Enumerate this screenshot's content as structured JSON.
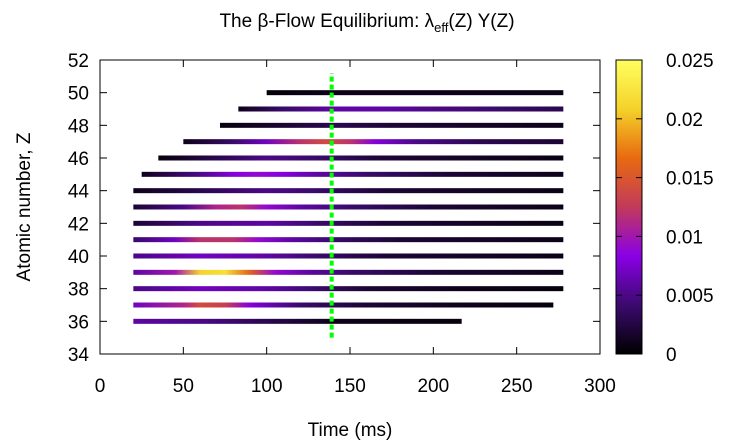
{
  "chart_data": {
    "type": "heatmap",
    "title": "The β-Flow Equilibrium: λ",
    "title_sub": "eff",
    "title_rest": "(Z) Y(Z)",
    "xlabel": "Time (ms)",
    "ylabel": "Atomic number, Z",
    "xlim": [
      0,
      300
    ],
    "ylim": [
      34,
      52
    ],
    "xticks": [
      "0",
      "50",
      "100",
      "150",
      "200",
      "250",
      "300"
    ],
    "yticks": [
      "34",
      "36",
      "38",
      "40",
      "42",
      "44",
      "46",
      "48",
      "50",
      "52"
    ],
    "colorbar": {
      "min": 0,
      "max": 0.025,
      "ticks": [
        "0",
        "0.005",
        "0.01",
        "0.015",
        "0.02",
        "0.025"
      ],
      "colors": [
        "#000000",
        "#3b0a6e",
        "#8a00e6",
        "#c23a5a",
        "#e86a10",
        "#f4d22a",
        "#ffff60"
      ]
    },
    "reference_line": {
      "x": 139,
      "color": "#00ff00",
      "style": "dashed"
    },
    "rows": [
      {
        "z": 36,
        "x_start": 20,
        "x_end": 217,
        "profile": [
          [
            20,
            0.006
          ],
          [
            60,
            0.005
          ],
          [
            100,
            0.003
          ],
          [
            140,
            0.001
          ],
          [
            217,
            0.0005
          ]
        ]
      },
      {
        "z": 37,
        "x_start": 20,
        "x_end": 272,
        "profile": [
          [
            20,
            0.007
          ],
          [
            50,
            0.011
          ],
          [
            60,
            0.014
          ],
          [
            75,
            0.013
          ],
          [
            90,
            0.008
          ],
          [
            120,
            0.004
          ],
          [
            160,
            0.002
          ],
          [
            220,
            0.001
          ],
          [
            272,
            0.0005
          ]
        ]
      },
      {
        "z": 38,
        "x_start": 20,
        "x_end": 278,
        "profile": [
          [
            20,
            0.005
          ],
          [
            60,
            0.007
          ],
          [
            100,
            0.006
          ],
          [
            130,
            0.004
          ],
          [
            160,
            0.002
          ],
          [
            220,
            0.001
          ],
          [
            278,
            0.0005
          ]
        ]
      },
      {
        "z": 39,
        "x_start": 20,
        "x_end": 278,
        "profile": [
          [
            20,
            0.006
          ],
          [
            45,
            0.01
          ],
          [
            60,
            0.021
          ],
          [
            75,
            0.022
          ],
          [
            90,
            0.016
          ],
          [
            105,
            0.009
          ],
          [
            125,
            0.006
          ],
          [
            150,
            0.004
          ],
          [
            200,
            0.002
          ],
          [
            278,
            0.001
          ]
        ]
      },
      {
        "z": 40,
        "x_start": 20,
        "x_end": 278,
        "profile": [
          [
            20,
            0.005
          ],
          [
            60,
            0.007
          ],
          [
            100,
            0.006
          ],
          [
            130,
            0.004
          ],
          [
            170,
            0.002
          ],
          [
            278,
            0.0008
          ]
        ]
      },
      {
        "z": 41,
        "x_start": 20,
        "x_end": 278,
        "profile": [
          [
            20,
            0.004
          ],
          [
            45,
            0.007
          ],
          [
            60,
            0.012
          ],
          [
            80,
            0.012
          ],
          [
            95,
            0.009
          ],
          [
            115,
            0.006
          ],
          [
            140,
            0.004
          ],
          [
            180,
            0.002
          ],
          [
            278,
            0.001
          ]
        ]
      },
      {
        "z": 42,
        "x_start": 20,
        "x_end": 278,
        "profile": [
          [
            20,
            0.002
          ],
          [
            60,
            0.005
          ],
          [
            100,
            0.006
          ],
          [
            130,
            0.004
          ],
          [
            170,
            0.002
          ],
          [
            278,
            0.0008
          ]
        ]
      },
      {
        "z": 43,
        "x_start": 20,
        "x_end": 278,
        "profile": [
          [
            20,
            0.002
          ],
          [
            50,
            0.005
          ],
          [
            70,
            0.011
          ],
          [
            85,
            0.012
          ],
          [
            100,
            0.009
          ],
          [
            120,
            0.006
          ],
          [
            150,
            0.004
          ],
          [
            200,
            0.002
          ],
          [
            278,
            0.001
          ]
        ]
      },
      {
        "z": 44,
        "x_start": 20,
        "x_end": 278,
        "profile": [
          [
            20,
            0.001
          ],
          [
            60,
            0.003
          ],
          [
            100,
            0.005
          ],
          [
            130,
            0.004
          ],
          [
            170,
            0.002
          ],
          [
            278,
            0.0008
          ]
        ]
      },
      {
        "z": 45,
        "x_start": 25,
        "x_end": 278,
        "profile": [
          [
            25,
            0.001
          ],
          [
            60,
            0.005
          ],
          [
            80,
            0.008
          ],
          [
            95,
            0.009
          ],
          [
            110,
            0.008
          ],
          [
            130,
            0.006
          ],
          [
            160,
            0.004
          ],
          [
            210,
            0.002
          ],
          [
            278,
            0.001
          ]
        ]
      },
      {
        "z": 46,
        "x_start": 35,
        "x_end": 278,
        "profile": [
          [
            35,
            0.0005
          ],
          [
            70,
            0.003
          ],
          [
            100,
            0.005
          ],
          [
            130,
            0.004
          ],
          [
            170,
            0.002
          ],
          [
            278,
            0.0008
          ]
        ]
      },
      {
        "z": 47,
        "x_start": 50,
        "x_end": 278,
        "profile": [
          [
            50,
            0.001
          ],
          [
            80,
            0.004
          ],
          [
            100,
            0.007
          ],
          [
            120,
            0.012
          ],
          [
            135,
            0.014
          ],
          [
            150,
            0.012
          ],
          [
            165,
            0.008
          ],
          [
            190,
            0.005
          ],
          [
            230,
            0.003
          ],
          [
            278,
            0.002
          ]
        ]
      },
      {
        "z": 48,
        "x_start": 72,
        "x_end": 278,
        "profile": [
          [
            72,
            0.0005
          ],
          [
            110,
            0.002
          ],
          [
            140,
            0.003
          ],
          [
            180,
            0.002
          ],
          [
            278,
            0.001
          ]
        ]
      },
      {
        "z": 49,
        "x_start": 83,
        "x_end": 278,
        "profile": [
          [
            83,
            0.001
          ],
          [
            110,
            0.004
          ],
          [
            140,
            0.006
          ],
          [
            170,
            0.006
          ],
          [
            200,
            0.005
          ],
          [
            240,
            0.004
          ],
          [
            278,
            0.003
          ]
        ]
      },
      {
        "z": 50,
        "x_start": 100,
        "x_end": 278,
        "profile": [
          [
            100,
            0.0003
          ],
          [
            140,
            0.001
          ],
          [
            200,
            0.001
          ],
          [
            278,
            0.0008
          ]
        ]
      }
    ]
  }
}
